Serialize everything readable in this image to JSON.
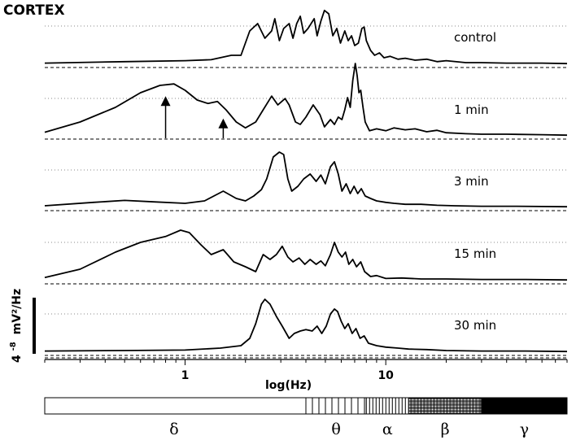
{
  "chart_data": {
    "type": "line",
    "title": "CORTEX",
    "xlabel": "log(Hz)",
    "x_scale": "log",
    "xlim": [
      0.2,
      80
    ],
    "x_ticks": [
      {
        "value": 1,
        "label": "1"
      },
      {
        "value": 10,
        "label": "10"
      }
    ],
    "y_scale_label": "4",
    "y_scale_exponent": "-8",
    "y_scale_unit": "mV²/Hz",
    "grid": "dotted reference line per trace",
    "series": [
      {
        "name": "control",
        "baseline_style": "dashed",
        "points": [
          [
            0.2,
            0.04
          ],
          [
            0.5,
            0.07
          ],
          [
            1.0,
            0.09
          ],
          [
            1.35,
            0.11
          ],
          [
            1.7,
            0.2
          ],
          [
            1.9,
            0.2
          ],
          [
            2.1,
            0.7
          ],
          [
            2.3,
            0.85
          ],
          [
            2.5,
            0.55
          ],
          [
            2.7,
            0.7
          ],
          [
            2.8,
            0.95
          ],
          [
            2.95,
            0.5
          ],
          [
            3.1,
            0.75
          ],
          [
            3.3,
            0.85
          ],
          [
            3.45,
            0.55
          ],
          [
            3.6,
            0.85
          ],
          [
            3.75,
            1.0
          ],
          [
            3.9,
            0.65
          ],
          [
            4.1,
            0.75
          ],
          [
            4.4,
            0.95
          ],
          [
            4.55,
            0.6
          ],
          [
            4.75,
            0.9
          ],
          [
            4.95,
            1.12
          ],
          [
            5.2,
            1.05
          ],
          [
            5.45,
            0.6
          ],
          [
            5.7,
            0.75
          ],
          [
            5.95,
            0.45
          ],
          [
            6.25,
            0.7
          ],
          [
            6.5,
            0.5
          ],
          [
            6.75,
            0.6
          ],
          [
            7.0,
            0.4
          ],
          [
            7.3,
            0.45
          ],
          [
            7.6,
            0.75
          ],
          [
            7.8,
            0.78
          ],
          [
            8.0,
            0.5
          ],
          [
            8.4,
            0.3
          ],
          [
            8.8,
            0.2
          ],
          [
            9.3,
            0.25
          ],
          [
            9.8,
            0.15
          ],
          [
            10.5,
            0.18
          ],
          [
            11.5,
            0.12
          ],
          [
            12.5,
            0.14
          ],
          [
            14,
            0.1
          ],
          [
            16,
            0.12
          ],
          [
            18,
            0.07
          ],
          [
            20,
            0.09
          ],
          [
            25,
            0.05
          ],
          [
            30,
            0.05
          ],
          [
            40,
            0.04
          ],
          [
            60,
            0.04
          ],
          [
            80,
            0.03
          ]
        ]
      },
      {
        "name": "1 min",
        "baseline_style": "dashed",
        "points": [
          [
            0.2,
            0.09
          ],
          [
            0.3,
            0.3
          ],
          [
            0.45,
            0.6
          ],
          [
            0.6,
            0.9
          ],
          [
            0.75,
            1.05
          ],
          [
            0.88,
            1.08
          ],
          [
            1.0,
            0.95
          ],
          [
            1.15,
            0.75
          ],
          [
            1.3,
            0.68
          ],
          [
            1.45,
            0.72
          ],
          [
            1.6,
            0.55
          ],
          [
            1.8,
            0.3
          ],
          [
            2.0,
            0.18
          ],
          [
            2.25,
            0.3
          ],
          [
            2.45,
            0.55
          ],
          [
            2.7,
            0.83
          ],
          [
            2.9,
            0.65
          ],
          [
            3.15,
            0.78
          ],
          [
            3.3,
            0.65
          ],
          [
            3.55,
            0.3
          ],
          [
            3.75,
            0.25
          ],
          [
            4.0,
            0.4
          ],
          [
            4.35,
            0.65
          ],
          [
            4.7,
            0.45
          ],
          [
            4.95,
            0.2
          ],
          [
            5.3,
            0.35
          ],
          [
            5.55,
            0.25
          ],
          [
            5.8,
            0.4
          ],
          [
            6.05,
            0.35
          ],
          [
            6.25,
            0.55
          ],
          [
            6.45,
            0.8
          ],
          [
            6.65,
            0.6
          ],
          [
            6.85,
            1.15
          ],
          [
            7.05,
            1.5
          ],
          [
            7.2,
            1.25
          ],
          [
            7.35,
            0.9
          ],
          [
            7.5,
            0.95
          ],
          [
            7.7,
            0.6
          ],
          [
            7.9,
            0.3
          ],
          [
            8.3,
            0.12
          ],
          [
            9,
            0.16
          ],
          [
            10,
            0.12
          ],
          [
            11,
            0.18
          ],
          [
            12.5,
            0.14
          ],
          [
            14,
            0.16
          ],
          [
            16,
            0.1
          ],
          [
            18,
            0.13
          ],
          [
            20,
            0.08
          ],
          [
            25,
            0.06
          ],
          [
            30,
            0.05
          ],
          [
            40,
            0.05
          ],
          [
            60,
            0.04
          ],
          [
            80,
            0.03
          ]
        ]
      },
      {
        "name": "3 min",
        "baseline_style": "dashed",
        "points": [
          [
            0.2,
            0.05
          ],
          [
            0.35,
            0.12
          ],
          [
            0.5,
            0.16
          ],
          [
            0.7,
            0.13
          ],
          [
            1.0,
            0.1
          ],
          [
            1.25,
            0.15
          ],
          [
            1.55,
            0.35
          ],
          [
            1.8,
            0.2
          ],
          [
            2.0,
            0.15
          ],
          [
            2.2,
            0.25
          ],
          [
            2.4,
            0.38
          ],
          [
            2.55,
            0.6
          ],
          [
            2.75,
            1.05
          ],
          [
            2.95,
            1.15
          ],
          [
            3.1,
            1.1
          ],
          [
            3.25,
            0.6
          ],
          [
            3.4,
            0.35
          ],
          [
            3.65,
            0.45
          ],
          [
            3.9,
            0.6
          ],
          [
            4.2,
            0.7
          ],
          [
            4.5,
            0.55
          ],
          [
            4.75,
            0.68
          ],
          [
            5.0,
            0.5
          ],
          [
            5.3,
            0.85
          ],
          [
            5.55,
            0.95
          ],
          [
            5.8,
            0.7
          ],
          [
            6.05,
            0.35
          ],
          [
            6.35,
            0.5
          ],
          [
            6.65,
            0.3
          ],
          [
            6.95,
            0.45
          ],
          [
            7.25,
            0.3
          ],
          [
            7.55,
            0.4
          ],
          [
            7.9,
            0.25
          ],
          [
            8.4,
            0.2
          ],
          [
            9,
            0.15
          ],
          [
            10,
            0.12
          ],
          [
            11,
            0.1
          ],
          [
            12.5,
            0.08
          ],
          [
            15,
            0.08
          ],
          [
            18,
            0.06
          ],
          [
            22,
            0.05
          ],
          [
            30,
            0.04
          ],
          [
            45,
            0.04
          ],
          [
            80,
            0.03
          ]
        ]
      },
      {
        "name": "15 min",
        "baseline_style": "dashed",
        "points": [
          [
            0.2,
            0.08
          ],
          [
            0.3,
            0.25
          ],
          [
            0.45,
            0.6
          ],
          [
            0.6,
            0.8
          ],
          [
            0.8,
            0.92
          ],
          [
            0.95,
            1.05
          ],
          [
            1.05,
            1.0
          ],
          [
            1.2,
            0.75
          ],
          [
            1.35,
            0.55
          ],
          [
            1.55,
            0.65
          ],
          [
            1.75,
            0.4
          ],
          [
            2.0,
            0.3
          ],
          [
            2.25,
            0.2
          ],
          [
            2.45,
            0.55
          ],
          [
            2.65,
            0.45
          ],
          [
            2.85,
            0.55
          ],
          [
            3.05,
            0.72
          ],
          [
            3.25,
            0.5
          ],
          [
            3.45,
            0.4
          ],
          [
            3.7,
            0.48
          ],
          [
            3.95,
            0.35
          ],
          [
            4.2,
            0.45
          ],
          [
            4.5,
            0.35
          ],
          [
            4.75,
            0.42
          ],
          [
            5.0,
            0.32
          ],
          [
            5.3,
            0.55
          ],
          [
            5.55,
            0.8
          ],
          [
            5.8,
            0.6
          ],
          [
            6.05,
            0.5
          ],
          [
            6.3,
            0.6
          ],
          [
            6.55,
            0.35
          ],
          [
            6.85,
            0.45
          ],
          [
            7.15,
            0.3
          ],
          [
            7.5,
            0.4
          ],
          [
            7.85,
            0.2
          ],
          [
            8.4,
            0.1
          ],
          [
            9,
            0.12
          ],
          [
            10,
            0.06
          ],
          [
            12,
            0.07
          ],
          [
            15,
            0.05
          ],
          [
            20,
            0.05
          ],
          [
            30,
            0.04
          ],
          [
            50,
            0.04
          ],
          [
            80,
            0.03
          ]
        ]
      },
      {
        "name": "30 min",
        "baseline_style": "double dashed",
        "points": [
          [
            0.2,
            0.04
          ],
          [
            0.5,
            0.05
          ],
          [
            1.0,
            0.06
          ],
          [
            1.5,
            0.1
          ],
          [
            1.9,
            0.15
          ],
          [
            2.1,
            0.3
          ],
          [
            2.25,
            0.6
          ],
          [
            2.4,
            1.0
          ],
          [
            2.5,
            1.1
          ],
          [
            2.65,
            1.0
          ],
          [
            2.85,
            0.75
          ],
          [
            3.05,
            0.55
          ],
          [
            3.3,
            0.3
          ],
          [
            3.5,
            0.4
          ],
          [
            3.75,
            0.45
          ],
          [
            4.0,
            0.48
          ],
          [
            4.3,
            0.45
          ],
          [
            4.55,
            0.55
          ],
          [
            4.8,
            0.4
          ],
          [
            5.05,
            0.55
          ],
          [
            5.3,
            0.8
          ],
          [
            5.55,
            0.9
          ],
          [
            5.75,
            0.85
          ],
          [
            6.0,
            0.65
          ],
          [
            6.25,
            0.5
          ],
          [
            6.5,
            0.6
          ],
          [
            6.8,
            0.4
          ],
          [
            7.1,
            0.5
          ],
          [
            7.45,
            0.3
          ],
          [
            7.8,
            0.35
          ],
          [
            8.2,
            0.2
          ],
          [
            9,
            0.15
          ],
          [
            10,
            0.12
          ],
          [
            11.5,
            0.1
          ],
          [
            13,
            0.08
          ],
          [
            16,
            0.07
          ],
          [
            20,
            0.05
          ],
          [
            30,
            0.04
          ],
          [
            50,
            0.04
          ],
          [
            80,
            0.03
          ]
        ]
      }
    ],
    "annotations": [
      {
        "type": "arrow",
        "series": "1 min",
        "x": 0.8
      },
      {
        "type": "arrow",
        "series": "1 min",
        "x": 1.55
      }
    ],
    "bands": [
      {
        "label": "δ",
        "from": 0.2,
        "to": 4,
        "fill": "#ffffff",
        "pattern": "none"
      },
      {
        "label": "θ",
        "from": 4,
        "to": 8,
        "fill": "#ffffff",
        "pattern": "vertical-lines"
      },
      {
        "label": "α",
        "from": 8,
        "to": 13,
        "fill": "#ffffff",
        "pattern": "dense-vertical-lines"
      },
      {
        "label": "β",
        "from": 13,
        "to": 30,
        "fill": "#ffffff",
        "pattern": "crosshatch"
      },
      {
        "label": "γ",
        "from": 30,
        "to": 80,
        "fill": "#000000",
        "pattern": "solid"
      }
    ],
    "colors": {
      "line": "#000000",
      "grid": "#888888",
      "background": "#ffffff"
    }
  }
}
